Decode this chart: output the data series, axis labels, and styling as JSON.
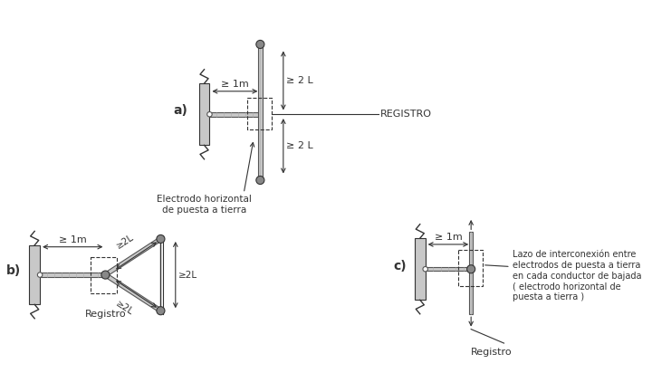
{
  "bg_color": "#ffffff",
  "line_color": "#333333",
  "gray_fill": "#c8c8c8",
  "dark_gray": "#888888",
  "label_a": "a)",
  "label_b": "b)",
  "label_c": "c)",
  "label_registro_a": "REGISTRO",
  "label_electrodo": "Electrodo horizontal\nde puesta a tierra",
  "label_registro_b": "Registro",
  "label_registro_c": "Registro",
  "label_1m_a": "≥ 1m",
  "label_2L_top": "≥ 2 L",
  "label_2L_bot": "≥ 2 L",
  "label_1m_b": "≥ 1m",
  "label_2L_b_upper": "≥2L",
  "label_2L_b_lower": "≥2L",
  "label_2L_b_side": "≥2L",
  "label_1m_c": "≥ 1m",
  "label_lazo": "Lazo de interconexión entre\nelectrodos de puesta a tierra\nen cada conductor de bajada\n( electrodo horizontal de\npuesta a tierra )"
}
